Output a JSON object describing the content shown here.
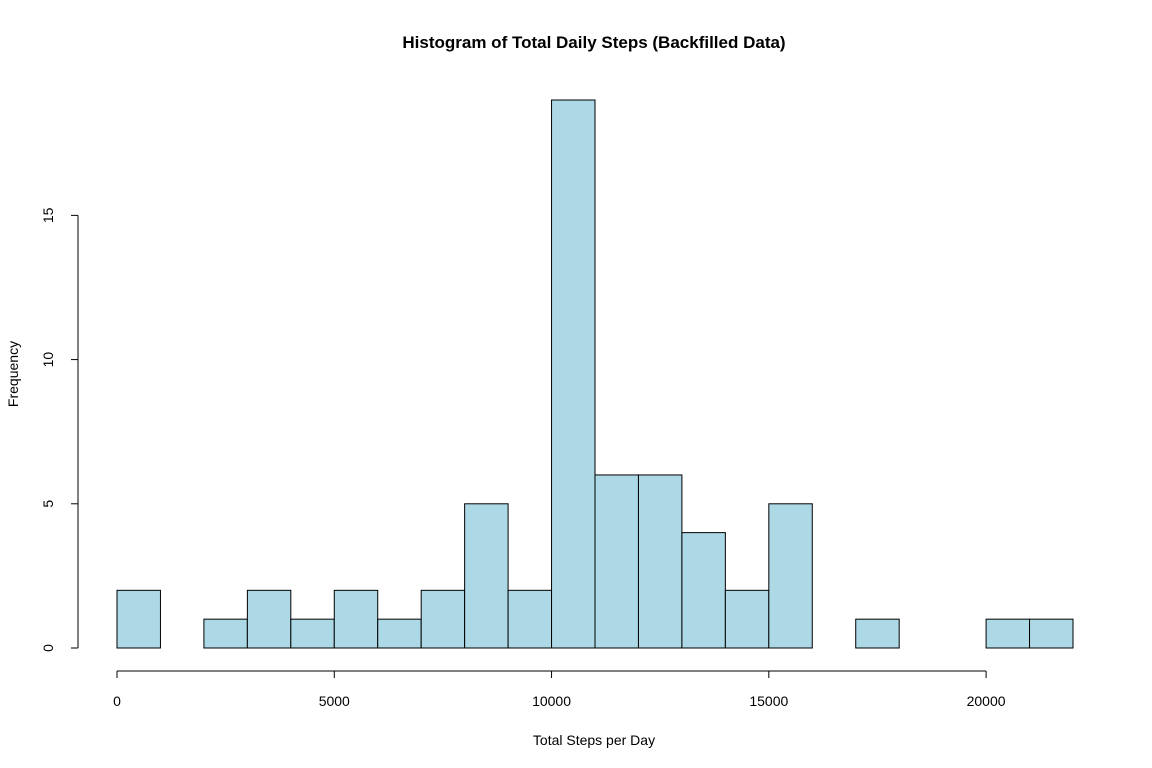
{
  "chart_data": {
    "type": "bar",
    "title": "Histogram of Total Daily Steps (Backfilled Data)",
    "xlabel": "Total Steps per Day",
    "ylabel": "Frequency",
    "bin_width": 1000,
    "bins_start": [
      0,
      1000,
      2000,
      3000,
      4000,
      5000,
      6000,
      7000,
      8000,
      9000,
      10000,
      11000,
      12000,
      13000,
      14000,
      15000,
      16000,
      17000,
      18000,
      19000,
      20000,
      21000
    ],
    "values": [
      2,
      0,
      1,
      2,
      1,
      2,
      1,
      2,
      5,
      2,
      19,
      6,
      6,
      4,
      2,
      5,
      0,
      1,
      0,
      0,
      1,
      1
    ],
    "xticks": [
      0,
      5000,
      10000,
      15000,
      20000
    ],
    "yticks": [
      0,
      5,
      10,
      15
    ],
    "xlim": [
      0,
      22000
    ],
    "ylim": [
      0,
      19
    ],
    "bar_color": "#add8e6",
    "grid": false
  }
}
